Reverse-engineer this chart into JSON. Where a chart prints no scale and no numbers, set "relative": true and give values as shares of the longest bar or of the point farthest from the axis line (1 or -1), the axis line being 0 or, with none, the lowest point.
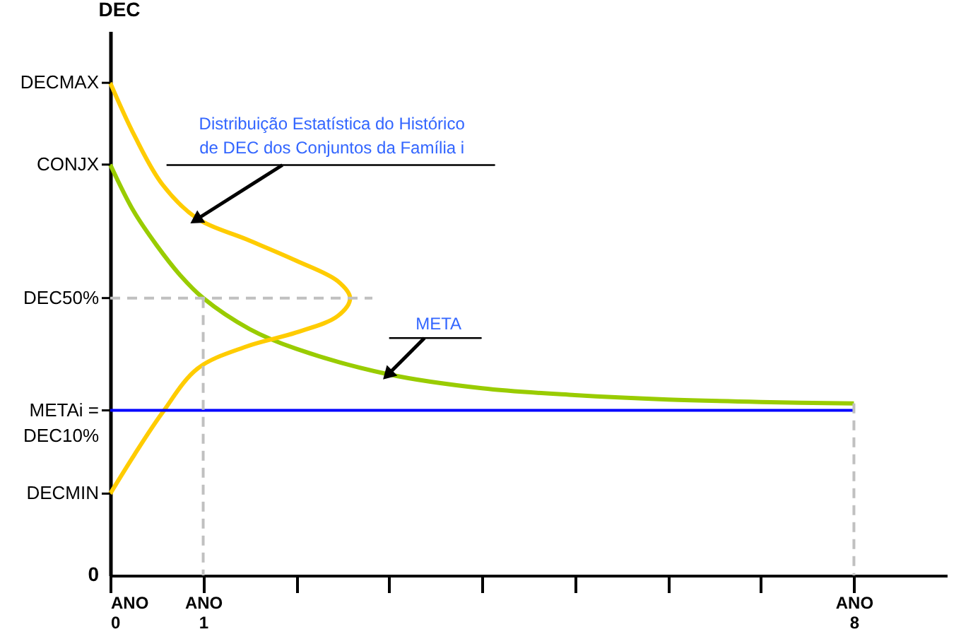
{
  "chart_data": {
    "type": "line",
    "relative": true,
    "ylabel": "DEC",
    "grid": false,
    "xlabel": "ANO",
    "xlim": [
      0,
      9
    ],
    "xticks": [
      0,
      1,
      {
        "value": 2,
        "label": null
      },
      {
        "value": 3,
        "label": null
      },
      {
        "value": 4,
        "label": null
      },
      {
        "value": 5,
        "label": null
      },
      {
        "value": 6,
        "label": null
      },
      {
        "value": 7,
        "label": null
      },
      8
    ],
    "series": [
      {
        "color": "#99cc00",
        "line_style": "solid",
        "x": [
          0,
          0.25,
          0.5,
          0.75,
          1,
          1.5,
          2,
          3,
          4,
          5,
          6,
          7,
          8
        ],
        "values": [
          0.834,
          0.74,
          0.67,
          0.61,
          0.563,
          0.5,
          0.46,
          0.408,
          0.38,
          0.366,
          0.357,
          0.352,
          0.349
        ]
      },
      {
        "color": "#ffcc00",
        "line_style": "solid",
        "x": [
          0,
          0.26,
          0.56,
          0.94,
          1.47,
          2.0,
          2.45,
          2.58,
          2.45,
          2.0,
          1.47,
          0.94,
          0.56,
          0.26,
          0
        ],
        "values": [
          1,
          0.893,
          0.794,
          0.724,
          0.682,
          0.639,
          0.597,
          0.563,
          0.527,
          0.493,
          0.465,
          0.42,
          0.33,
          0.245,
          0.166
        ]
      },
      {
        "color": "#0000ff",
        "line_style": "solid",
        "x": [
          0,
          8
        ],
        "values": [
          0.335,
          0.335
        ]
      },
      {
        "color": "#c0c0c0",
        "line_style": "dashed",
        "x": [
          0,
          2.82
        ],
        "values": [
          0.563,
          0.563
        ]
      },
      {
        "color": "#c0c0c0",
        "line_style": "dashed",
        "x": [
          1,
          1
        ],
        "values": [
          0.563,
          0
        ]
      },
      {
        "color": "#c0c0c0",
        "line_style": "dashed",
        "x": [
          8,
          8
        ],
        "values": [
          0.349,
          0
        ]
      }
    ],
    "annotations": [
      {
        "text": "DECMAX",
        "x": 0,
        "y": 1
      },
      {
        "text": "CONJX",
        "x": 0,
        "y": 0.834
      },
      {
        "text": "DEC50%",
        "x": 0,
        "y": 0.563
      },
      {
        "text": "METAi = DEC10%",
        "x": 0,
        "y": 0.335
      },
      {
        "text": "DECMIN",
        "x": 0,
        "y": 0.166
      },
      "0",
      {
        "text": "Distribuição Estatística do Histórico de DEC dos Conjuntos da Família i",
        "x": 0.94,
        "y": 0.724
      },
      {
        "text": "META",
        "x": 3,
        "y": 0.41
      }
    ]
  }
}
